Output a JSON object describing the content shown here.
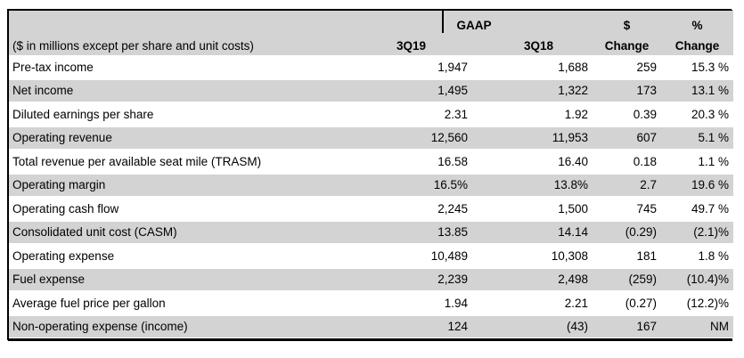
{
  "table": {
    "group_header": "GAAP",
    "unit_note": "($ in millions except per share and unit costs)",
    "columns": {
      "q19": "3Q19",
      "q18": "3Q18",
      "dollar_change_line1": "$",
      "dollar_change_line2": "Change",
      "percent_change_line1": "%",
      "percent_change_line2": "Change"
    },
    "rows": [
      {
        "label": "Pre-tax income",
        "q19": "1,947",
        "q18": "1,688",
        "chg": "259",
        "pct": "15.3 %"
      },
      {
        "label": "Net income",
        "q19": "1,495",
        "q18": "1,322",
        "chg": "173",
        "pct": "13.1 %"
      },
      {
        "label": "Diluted earnings per share",
        "q19": "2.31",
        "q18": "1.92",
        "chg": "0.39",
        "pct": "20.3 %"
      },
      {
        "label": "Operating revenue",
        "q19": "12,560",
        "q18": "11,953",
        "chg": "607",
        "pct": "5.1 %"
      },
      {
        "label": "Total revenue per available seat mile (TRASM)",
        "q19": "16.58",
        "q18": "16.40",
        "chg": "0.18",
        "pct": "1.1 %"
      },
      {
        "label": "Operating margin",
        "q19": "16.5%",
        "q18": "13.8%",
        "chg": "2.7",
        "pct": "19.6 %"
      },
      {
        "label": "Operating cash flow",
        "q19": "2,245",
        "q18": "1,500",
        "chg": "745",
        "pct": "49.7 %"
      },
      {
        "label": "Consolidated unit cost (CASM)",
        "q19": "13.85",
        "q18": "14.14",
        "chg": "(0.29)",
        "pct": "(2.1)%"
      },
      {
        "label": "Operating expense",
        "q19": "10,489",
        "q18": "10,308",
        "chg": "181",
        "pct": "1.8 %"
      },
      {
        "label": "Fuel expense",
        "q19": "2,239",
        "q18": "2,498",
        "chg": "(259)",
        "pct": "(10.4)%"
      },
      {
        "label": "Average fuel price per gallon",
        "q19": "1.94",
        "q18": "2.21",
        "chg": "(0.27)",
        "pct": "(12.2)%"
      },
      {
        "label": "Non-operating expense (income)",
        "q19": "124",
        "q18": "(43)",
        "chg": "167",
        "pct": "NM"
      }
    ]
  },
  "colors": {
    "header_bg": "#d3d3d3",
    "row_alt_bg": "#d3d3d3",
    "row_bg": "#ffffff",
    "border": "#000000",
    "text": "#000000"
  }
}
